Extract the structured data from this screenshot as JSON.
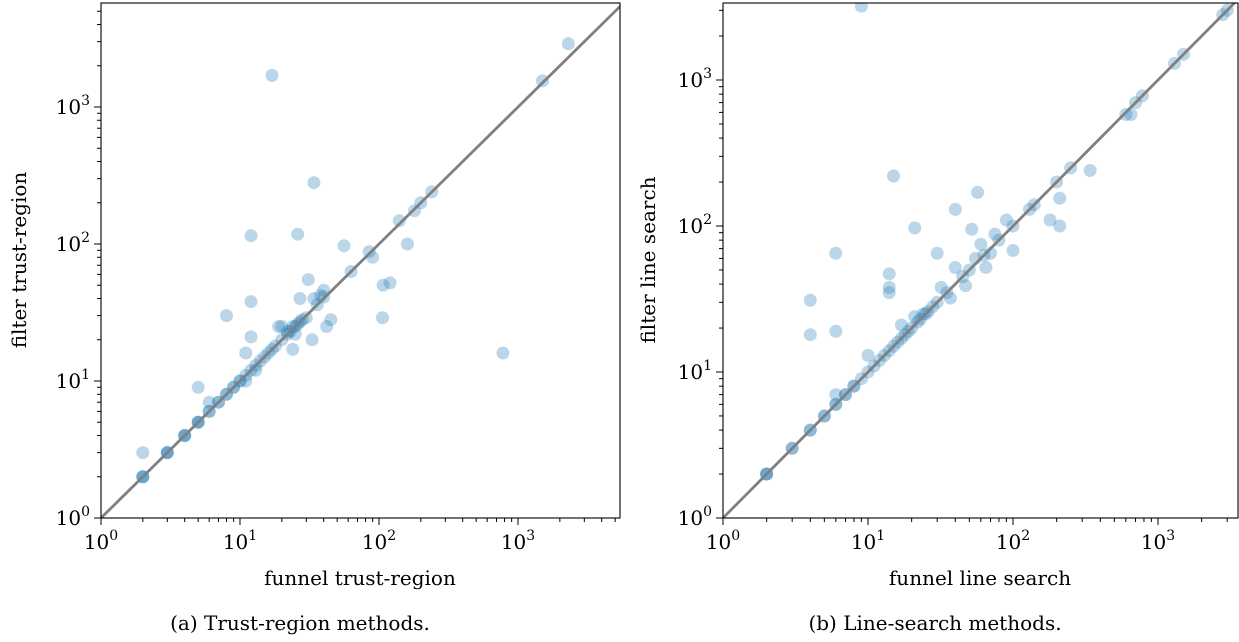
{
  "chart_data": [
    {
      "type": "scatter",
      "xlabel": "funnel trust-region",
      "ylabel": "filter trust-region",
      "caption": "(a) Trust-region methods.",
      "xscale": "log",
      "yscale": "log",
      "xlim": [
        1,
        5500
      ],
      "ylim": [
        1,
        5000
      ],
      "xticks": [
        {
          "base": "10",
          "exp": "0"
        },
        {
          "base": "10",
          "exp": "1"
        },
        {
          "base": "10",
          "exp": "2"
        },
        {
          "base": "10",
          "exp": "3"
        }
      ],
      "yticks": [
        {
          "base": "10",
          "exp": "0"
        },
        {
          "base": "10",
          "exp": "1"
        },
        {
          "base": "10",
          "exp": "2"
        },
        {
          "base": "10",
          "exp": "3"
        }
      ],
      "reference_line": "y = x",
      "grid": false,
      "point_color": "#1f77b4",
      "line_color": "#808080",
      "points": [
        [
          2,
          2
        ],
        [
          2,
          2
        ],
        [
          2,
          2
        ],
        [
          2,
          3
        ],
        [
          3,
          3
        ],
        [
          3,
          3
        ],
        [
          3,
          3
        ],
        [
          4,
          4
        ],
        [
          4,
          4
        ],
        [
          4,
          4
        ],
        [
          5,
          5
        ],
        [
          5,
          5
        ],
        [
          5,
          5
        ],
        [
          5,
          9
        ],
        [
          6,
          6
        ],
        [
          6,
          6
        ],
        [
          6,
          7
        ],
        [
          7,
          7
        ],
        [
          7,
          7
        ],
        [
          8,
          8
        ],
        [
          8,
          8
        ],
        [
          8,
          30
        ],
        [
          9,
          9
        ],
        [
          9,
          9
        ],
        [
          10,
          10
        ],
        [
          10,
          10
        ],
        [
          11,
          11
        ],
        [
          11,
          16
        ],
        [
          11,
          10
        ],
        [
          12,
          12
        ],
        [
          12,
          21
        ],
        [
          12,
          38
        ],
        [
          12,
          115
        ],
        [
          13,
          13
        ],
        [
          13,
          12
        ],
        [
          14,
          14
        ],
        [
          15,
          15
        ],
        [
          16,
          16
        ],
        [
          17,
          1700
        ],
        [
          17,
          17
        ],
        [
          18,
          18
        ],
        [
          19,
          25
        ],
        [
          20,
          20
        ],
        [
          20,
          25
        ],
        [
          22,
          22
        ],
        [
          22,
          23
        ],
        [
          23,
          23
        ],
        [
          24,
          25
        ],
        [
          24,
          17
        ],
        [
          25,
          25
        ],
        [
          25,
          22
        ],
        [
          26,
          26
        ],
        [
          26,
          118
        ],
        [
          27,
          40
        ],
        [
          27,
          27
        ],
        [
          28,
          28
        ],
        [
          30,
          29
        ],
        [
          31,
          55
        ],
        [
          33,
          20
        ],
        [
          34,
          280
        ],
        [
          34,
          40
        ],
        [
          36,
          36
        ],
        [
          38,
          42
        ],
        [
          40,
          46
        ],
        [
          40,
          41
        ],
        [
          42,
          25
        ],
        [
          45,
          28
        ],
        [
          56,
          97
        ],
        [
          63,
          63
        ],
        [
          85,
          88
        ],
        [
          90,
          80
        ],
        [
          106,
          29
        ],
        [
          107,
          50
        ],
        [
          120,
          52
        ],
        [
          140,
          148
        ],
        [
          160,
          100
        ],
        [
          180,
          175
        ],
        [
          200,
          200
        ],
        [
          240,
          240
        ],
        [
          780,
          16
        ],
        [
          1500,
          1550
        ],
        [
          2300,
          2900
        ]
      ]
    },
    {
      "type": "scatter",
      "xlabel": "funnel line search",
      "ylabel": "filter line search",
      "caption": "(b) Line-search methods.",
      "xscale": "log",
      "yscale": "log",
      "xlim": [
        1,
        3200
      ],
      "ylim": [
        1,
        3200
      ],
      "xticks": [
        {
          "base": "10",
          "exp": "0"
        },
        {
          "base": "10",
          "exp": "1"
        },
        {
          "base": "10",
          "exp": "2"
        },
        {
          "base": "10",
          "exp": "3"
        }
      ],
      "yticks": [
        {
          "base": "10",
          "exp": "0"
        },
        {
          "base": "10",
          "exp": "1"
        },
        {
          "base": "10",
          "exp": "2"
        },
        {
          "base": "10",
          "exp": "3"
        }
      ],
      "reference_line": "y = x",
      "grid": false,
      "point_color": "#1f77b4",
      "line_color": "#808080",
      "points": [
        [
          2,
          2
        ],
        [
          2,
          2
        ],
        [
          2,
          2
        ],
        [
          3,
          3
        ],
        [
          3,
          3
        ],
        [
          4,
          4
        ],
        [
          4,
          4
        ],
        [
          4,
          18
        ],
        [
          4,
          31
        ],
        [
          5,
          5
        ],
        [
          5,
          5
        ],
        [
          6,
          6
        ],
        [
          6,
          6
        ],
        [
          6,
          7
        ],
        [
          6,
          19
        ],
        [
          6,
          65
        ],
        [
          7,
          7
        ],
        [
          7,
          7
        ],
        [
          8,
          8
        ],
        [
          8,
          8
        ],
        [
          9,
          9
        ],
        [
          9,
          3200
        ],
        [
          10,
          10
        ],
        [
          10,
          13
        ],
        [
          11,
          11
        ],
        [
          12,
          12
        ],
        [
          13,
          13
        ],
        [
          14,
          14
        ],
        [
          14,
          35
        ],
        [
          14,
          38
        ],
        [
          14,
          47
        ],
        [
          15,
          15
        ],
        [
          15,
          220
        ],
        [
          16,
          16
        ],
        [
          17,
          17
        ],
        [
          17,
          21
        ],
        [
          18,
          18
        ],
        [
          19,
          19
        ],
        [
          20,
          20
        ],
        [
          21,
          24
        ],
        [
          21,
          97
        ],
        [
          22,
          22
        ],
        [
          23,
          23
        ],
        [
          24,
          25
        ],
        [
          25,
          25
        ],
        [
          26,
          26
        ],
        [
          28,
          28
        ],
        [
          30,
          30
        ],
        [
          30,
          65
        ],
        [
          32,
          38
        ],
        [
          35,
          35
        ],
        [
          37,
          32
        ],
        [
          40,
          52
        ],
        [
          40,
          130
        ],
        [
          45,
          45
        ],
        [
          47,
          39
        ],
        [
          50,
          50
        ],
        [
          52,
          95
        ],
        [
          55,
          60
        ],
        [
          57,
          170
        ],
        [
          60,
          75
        ],
        [
          63,
          63
        ],
        [
          65,
          52
        ],
        [
          70,
          65
        ],
        [
          75,
          88
        ],
        [
          80,
          80
        ],
        [
          90,
          110
        ],
        [
          100,
          100
        ],
        [
          100,
          68
        ],
        [
          130,
          130
        ],
        [
          140,
          140
        ],
        [
          180,
          110
        ],
        [
          200,
          200
        ],
        [
          210,
          155
        ],
        [
          210,
          100
        ],
        [
          250,
          250
        ],
        [
          340,
          240
        ],
        [
          600,
          580
        ],
        [
          650,
          580
        ],
        [
          700,
          700
        ],
        [
          780,
          780
        ],
        [
          1300,
          1300
        ],
        [
          1500,
          1500
        ],
        [
          2800,
          2800
        ],
        [
          3000,
          3000
        ]
      ]
    }
  ]
}
